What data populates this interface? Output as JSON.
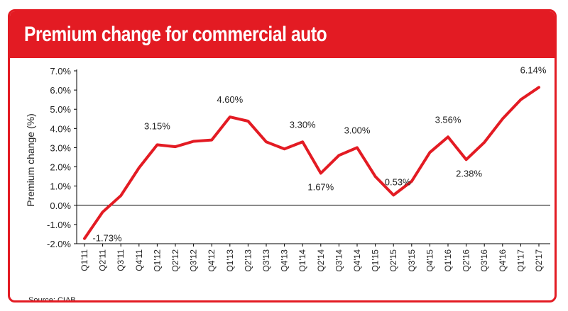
{
  "header": {
    "title": "Premium change for commercial auto"
  },
  "source": "Source: CIAB",
  "colors": {
    "accent": "#e31b23",
    "text": "#222222",
    "axis": "#000000"
  },
  "chart_data": {
    "type": "line",
    "title": "Premium change for commercial auto",
    "ylabel": "Premium change (%)",
    "xlabel": "",
    "ylim": [
      -2.0,
      7.0
    ],
    "yticks": [
      "-2.0%",
      "-1.0%",
      "0.0%",
      "1.0%",
      "2.0%",
      "3.0%",
      "4.0%",
      "5.0%",
      "6.0%",
      "7.0%"
    ],
    "grid": false,
    "categories": [
      "Q1'11",
      "Q2'11",
      "Q3'11",
      "Q4'11",
      "Q1'12",
      "Q2'12",
      "Q3'12",
      "Q4'12",
      "Q1'13",
      "Q2'13",
      "Q3'13",
      "Q4'13",
      "Q1'14",
      "Q2'14",
      "Q3'14",
      "Q4'14",
      "Q1'15",
      "Q2'15",
      "Q3'15",
      "Q4'15",
      "Q1'16",
      "Q2'16",
      "Q3'16",
      "Q4'16",
      "Q1'17",
      "Q2'17"
    ],
    "series": [
      {
        "values": [
          -1.73,
          -0.35,
          0.5,
          1.95,
          3.15,
          3.05,
          3.33,
          3.4,
          4.6,
          4.38,
          3.3,
          2.93,
          3.3,
          1.67,
          2.6,
          3.0,
          1.5,
          0.53,
          1.25,
          2.75,
          3.56,
          2.38,
          3.28,
          4.5,
          5.5,
          6.14
        ]
      }
    ],
    "annotations": [
      {
        "index": 0,
        "label": "-1.73%"
      },
      {
        "index": 4,
        "label": "3.15%"
      },
      {
        "index": 8,
        "label": "4.60%"
      },
      {
        "index": 12,
        "label": "3.30%"
      },
      {
        "index": 13,
        "label": "1.67%"
      },
      {
        "index": 15,
        "label": "3.00%"
      },
      {
        "index": 17,
        "label": "0.53%"
      },
      {
        "index": 20,
        "label": "3.56%"
      },
      {
        "index": 21,
        "label": "2.38%"
      },
      {
        "index": 25,
        "label": "6.14%"
      }
    ]
  }
}
